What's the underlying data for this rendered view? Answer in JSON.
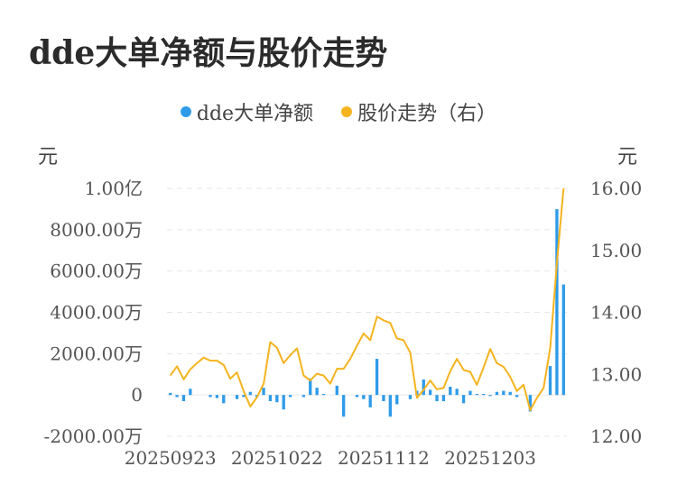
{
  "title": "dde大单净额与股价走势",
  "chart_data": {
    "type": "bar-line",
    "legend": [
      {
        "name": "dde大单净额",
        "color": "#2f9be8"
      },
      {
        "name": "股价走势（右）",
        "color": "#f5b31e"
      }
    ],
    "y_left": {
      "unit": "元",
      "ylim": [
        -20000000,
        100000000
      ],
      "ticks": [
        -20000000,
        0,
        20000000,
        40000000,
        60000000,
        80000000,
        100000000
      ],
      "tick_labels": [
        "-2000.00万",
        "0",
        "2000.00万",
        "4000.00万",
        "6000.00万",
        "8000.00万",
        "1.00亿"
      ]
    },
    "y_right": {
      "unit": "元",
      "ylim": [
        12.0,
        16.0
      ],
      "ticks": [
        12.0,
        13.0,
        14.0,
        15.0,
        16.0
      ],
      "tick_labels": [
        "12.00",
        "13.00",
        "14.00",
        "15.00",
        "16.00"
      ]
    },
    "x_tick_labels": [
      {
        "index": 0,
        "label": "20250923"
      },
      {
        "index": 16,
        "label": "20251022"
      },
      {
        "index": 32,
        "label": "20251112"
      },
      {
        "index": 48,
        "label": "20251203"
      }
    ],
    "grid": "horizontal-dashed",
    "series": [
      {
        "name": "dde大单净额",
        "type": "bar",
        "axis": "left",
        "values": [
          1000000,
          -1000000,
          -3000000,
          3000000,
          0,
          0,
          -1000000,
          -1500000,
          -4000000,
          0,
          -2000000,
          -1000000,
          1500000,
          -1000000,
          3500000,
          -3000000,
          -3500000,
          -7000000,
          -1000000,
          0,
          -1000000,
          8000000,
          3500000,
          500000,
          0,
          4500000,
          -10500000,
          0,
          -1000000,
          -2000000,
          -6000000,
          17500000,
          -3000000,
          -10500000,
          -4500000,
          0,
          -2000000,
          2000000,
          7500000,
          2500000,
          -3000000,
          -3000000,
          4000000,
          3000000,
          -4000000,
          2000000,
          500000,
          500000,
          -500000,
          1500000,
          2000000,
          1500000,
          -1000000,
          0,
          -8000000,
          0,
          0,
          14000000,
          90000000,
          53500000
        ],
        "color": "#2f9be8"
      },
      {
        "name": "股价走势（右）",
        "type": "line",
        "axis": "right",
        "values": [
          12.98,
          13.13,
          12.92,
          13.08,
          13.18,
          13.27,
          13.22,
          13.22,
          13.15,
          12.93,
          13.03,
          12.73,
          12.48,
          12.63,
          12.85,
          13.52,
          13.43,
          13.18,
          13.31,
          13.42,
          12.98,
          12.9,
          13.01,
          12.98,
          12.85,
          13.09,
          13.09,
          13.25,
          13.46,
          13.66,
          13.55,
          13.93,
          13.87,
          13.83,
          13.58,
          13.55,
          13.35,
          12.62,
          12.75,
          12.9,
          12.76,
          12.78,
          13.05,
          13.25,
          13.07,
          13.04,
          12.83,
          13.11,
          13.41,
          13.18,
          13.12,
          12.96,
          12.73,
          12.83,
          12.42,
          12.62,
          12.78,
          13.42,
          14.79,
          16.0
        ],
        "color": "#f5b31e"
      }
    ]
  }
}
